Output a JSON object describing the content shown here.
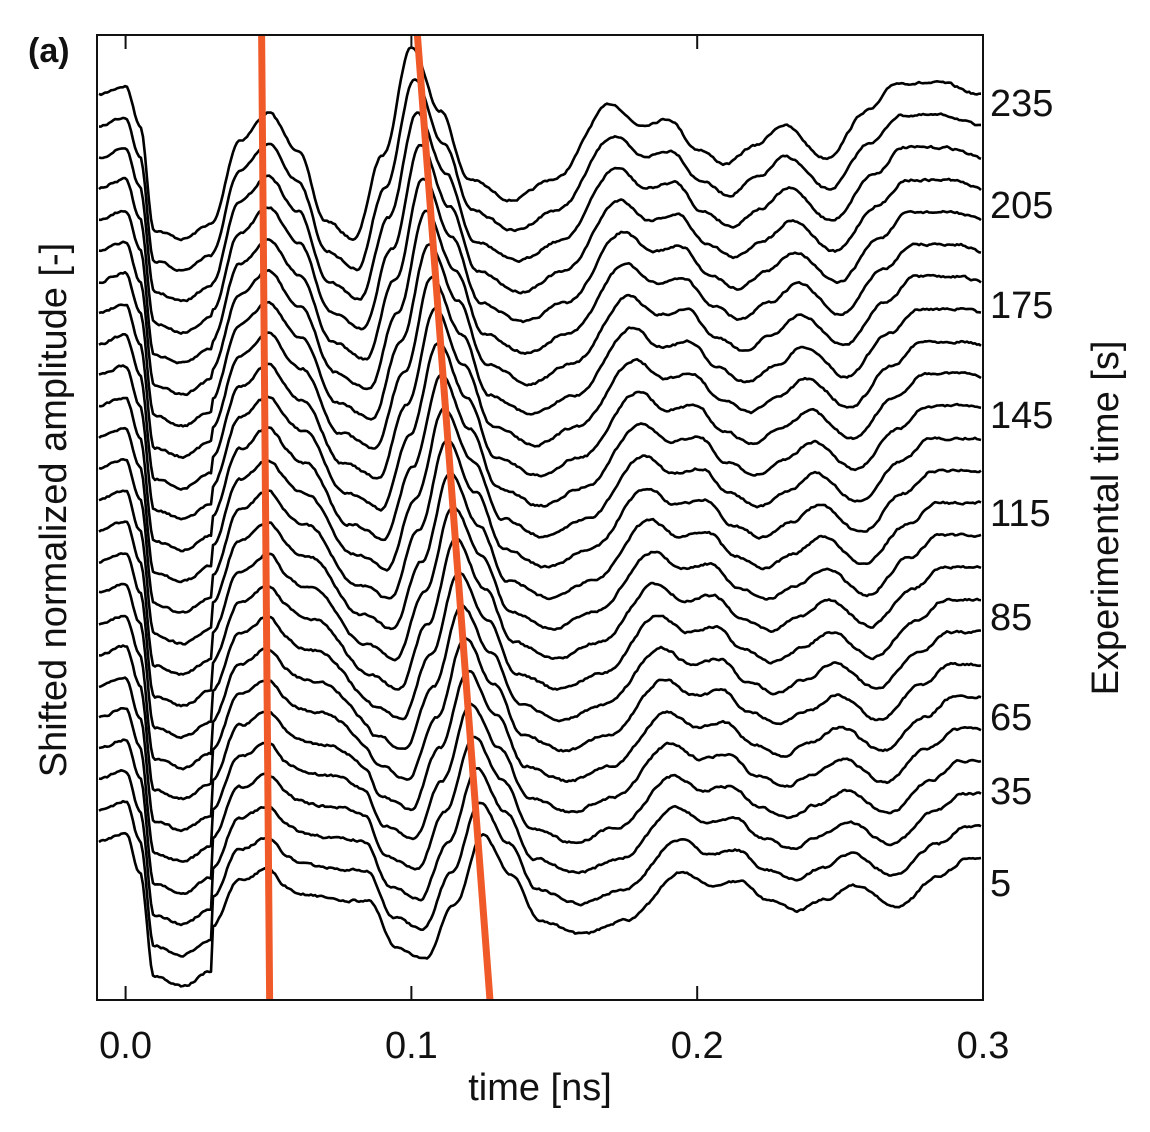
{
  "chart_data": {
    "type": "line",
    "panel_label": "(a)",
    "xlabel": "time [ns]",
    "ylabel": "Shifted normalized amplitude [-]",
    "y2label": "Experimental time [s]",
    "xlim": [
      -0.01,
      0.3
    ],
    "xticks": [
      "0.0",
      "0.1",
      "0.2",
      "0.3"
    ],
    "xtick_values": [
      0.0,
      0.1,
      0.2,
      0.3
    ],
    "right_tick_labels": [
      "235",
      "205",
      "175",
      "145",
      "115",
      "85",
      "65",
      "35",
      "5"
    ],
    "trace_count": 25,
    "trace_color": "#000000",
    "base_waveform": {
      "t": [
        -0.01,
        0,
        0.005,
        0.01,
        0.02,
        0.03,
        0.04,
        0.05,
        0.06,
        0.07,
        0.08,
        0.09,
        0.1,
        0.11,
        0.12,
        0.135,
        0.15,
        0.17,
        0.18,
        0.19,
        0.2,
        0.21,
        0.22,
        0.23,
        0.245,
        0.26,
        0.27,
        0.285,
        0.3
      ],
      "amplitude": [
        0,
        0.3,
        -1,
        -4.5,
        -4.8,
        -4.3,
        -1.5,
        -0.6,
        -1.8,
        -4.2,
        -4.8,
        -2,
        1.6,
        -0.5,
        -2.8,
        -3.5,
        -2.8,
        -0.3,
        -1,
        -0.8,
        -1.8,
        -2.3,
        -1.7,
        -1,
        -2.1,
        -0.5,
        0.4,
        0.4,
        0
      ]
    },
    "guide_lines": [
      {
        "color": "#f05a28",
        "t_top": 0.0476,
        "t_bottom": 0.0504
      },
      {
        "color": "#f05a28",
        "t_top": 0.1021,
        "t_bottom": 0.1275
      }
    ],
    "grid": false,
    "legend": "none"
  }
}
